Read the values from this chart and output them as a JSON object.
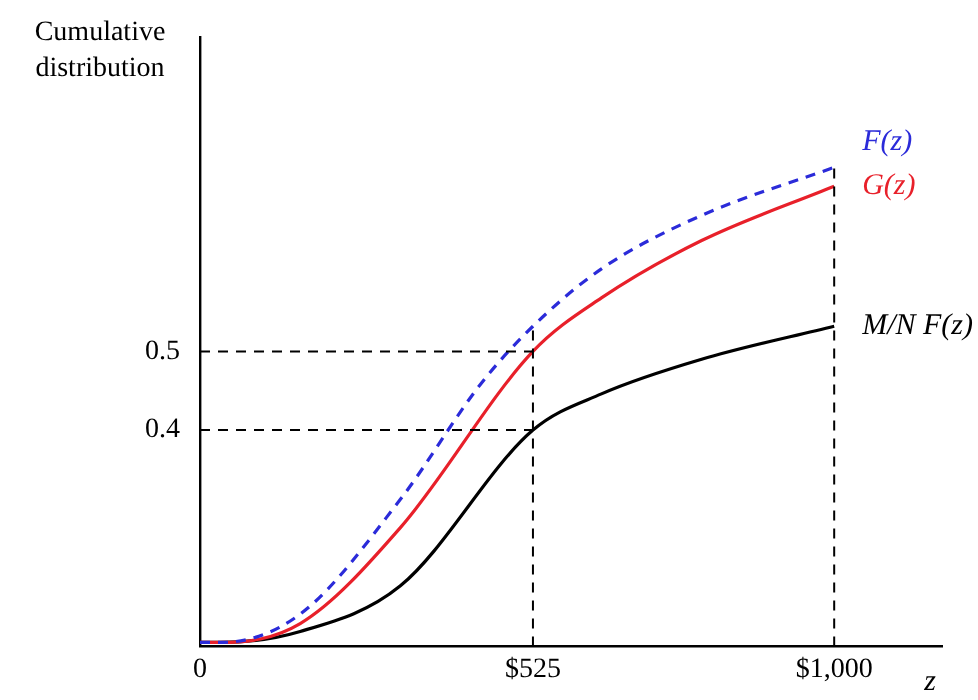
{
  "chart_data": {
    "type": "line",
    "ylabel": "Cumulative distribution",
    "xlabel": "z",
    "xlim": [
      0,
      1170
    ],
    "xticks": [
      0,
      {
        "value": 525,
        "label": "$525"
      },
      {
        "value": 1000,
        "label": "$1,000"
      }
    ],
    "ylim": [
      0.125,
      0.9
    ],
    "yticks": [
      0.4,
      0.5
    ],
    "grid": false,
    "legend": false,
    "marker": "none",
    "series": [
      {
        "name": "F(z)",
        "color": "#2b2bd9",
        "line_style": "dashed",
        "x": [
          0,
          32,
          158,
          316,
          443,
          525,
          633,
          791,
          1000
        ],
        "values": [
          0.13,
          0.13,
          0.166,
          0.312,
          0.459,
          0.532,
          0.605,
          0.673,
          0.734
        ]
      },
      {
        "name": "G(z)",
        "color": "#e8202a",
        "line_style": "solid",
        "x": [
          0,
          32,
          158,
          316,
          525,
          633,
          791,
          1000
        ],
        "values": [
          0.13,
          0.13,
          0.154,
          0.276,
          0.5,
          0.568,
          0.641,
          0.71
        ]
      },
      {
        "name": "M/N F(z)",
        "color": "#000000",
        "line_style": "solid",
        "x": [
          0,
          32,
          158,
          316,
          525,
          633,
          791,
          1000
        ],
        "values": [
          0.13,
          0.13,
          0.144,
          0.202,
          0.4,
          0.446,
          0.49,
          0.532
        ]
      }
    ],
    "ref_lines": [
      {
        "axis": "y",
        "value": 0.5,
        "line_style": "dashed"
      },
      {
        "axis": "y",
        "value": 0.4,
        "line_style": "dashed"
      },
      {
        "axis": "x",
        "value": 525,
        "line_style": "dashed"
      },
      {
        "axis": "x",
        "value": 1000,
        "line_style": "dashed"
      }
    ]
  }
}
